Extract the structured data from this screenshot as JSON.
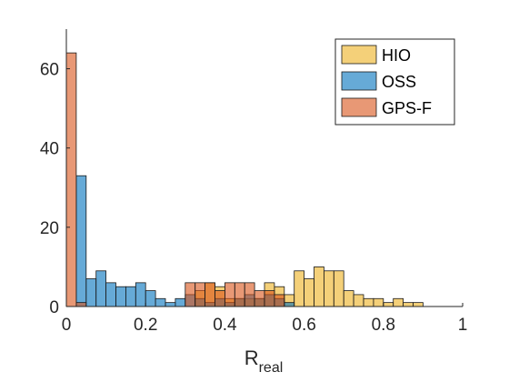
{
  "chart_data": {
    "type": "bar",
    "subtype": "overlaid-histogram",
    "title": "",
    "xlabel_base": "R",
    "xlabel_sub": "real",
    "ylabel": "",
    "xlim": [
      0,
      1
    ],
    "ylim": [
      0,
      70
    ],
    "bin_width": 0.025,
    "xticks": [
      0,
      0.2,
      0.4,
      0.6,
      0.8,
      1
    ],
    "xtick_labels": [
      "0",
      "0.2",
      "0.4",
      "0.6",
      "0.8",
      "1"
    ],
    "yticks": [
      0,
      20,
      40,
      60
    ],
    "ytick_labels": [
      "0",
      "20",
      "40",
      "60"
    ],
    "grid": false,
    "legend_position": "top-right",
    "series": [
      {
        "name": "HIO",
        "color": "#EDB120",
        "bins": [
          {
            "x0": 0.325,
            "count": 4
          },
          {
            "x0": 0.35,
            "count": 6
          },
          {
            "x0": 0.375,
            "count": 5
          },
          {
            "x0": 0.4,
            "count": 2
          },
          {
            "x0": 0.425,
            "count": 2
          },
          {
            "x0": 0.45,
            "count": 2
          },
          {
            "x0": 0.475,
            "count": 2
          },
          {
            "x0": 0.5,
            "count": 6
          },
          {
            "x0": 0.525,
            "count": 5
          },
          {
            "x0": 0.55,
            "count": 3
          },
          {
            "x0": 0.575,
            "count": 9
          },
          {
            "x0": 0.6,
            "count": 7
          },
          {
            "x0": 0.625,
            "count": 10
          },
          {
            "x0": 0.65,
            "count": 9
          },
          {
            "x0": 0.675,
            "count": 9
          },
          {
            "x0": 0.7,
            "count": 4
          },
          {
            "x0": 0.725,
            "count": 3
          },
          {
            "x0": 0.75,
            "count": 2
          },
          {
            "x0": 0.775,
            "count": 2
          },
          {
            "x0": 0.8,
            "count": 1
          },
          {
            "x0": 0.825,
            "count": 2
          },
          {
            "x0": 0.85,
            "count": 1
          },
          {
            "x0": 0.875,
            "count": 1
          }
        ]
      },
      {
        "name": "OSS",
        "color": "#0072BD",
        "bins": [
          {
            "x0": 0.0,
            "count": 0
          },
          {
            "x0": 0.025,
            "count": 33
          },
          {
            "x0": 0.05,
            "count": 7
          },
          {
            "x0": 0.075,
            "count": 9
          },
          {
            "x0": 0.1,
            "count": 6
          },
          {
            "x0": 0.125,
            "count": 5
          },
          {
            "x0": 0.15,
            "count": 5
          },
          {
            "x0": 0.175,
            "count": 6
          },
          {
            "x0": 0.2,
            "count": 4
          },
          {
            "x0": 0.225,
            "count": 2
          },
          {
            "x0": 0.25,
            "count": 1
          },
          {
            "x0": 0.275,
            "count": 2
          },
          {
            "x0": 0.3,
            "count": 3
          },
          {
            "x0": 0.325,
            "count": 2
          },
          {
            "x0": 0.35,
            "count": 1
          },
          {
            "x0": 0.375,
            "count": 2
          },
          {
            "x0": 0.4,
            "count": 1
          },
          {
            "x0": 0.425,
            "count": 2
          },
          {
            "x0": 0.45,
            "count": 3
          },
          {
            "x0": 0.475,
            "count": 2
          },
          {
            "x0": 0.5,
            "count": 3
          },
          {
            "x0": 0.525,
            "count": 2
          },
          {
            "x0": 0.55,
            "count": 1
          }
        ]
      },
      {
        "name": "GPS-F",
        "color": "#D95319",
        "bins": [
          {
            "x0": 0.0,
            "count": 64
          },
          {
            "x0": 0.025,
            "count": 1
          },
          {
            "x0": 0.3,
            "count": 6
          },
          {
            "x0": 0.325,
            "count": 6
          },
          {
            "x0": 0.35,
            "count": 6
          },
          {
            "x0": 0.375,
            "count": 4
          },
          {
            "x0": 0.4,
            "count": 6
          },
          {
            "x0": 0.425,
            "count": 6
          },
          {
            "x0": 0.45,
            "count": 6
          },
          {
            "x0": 0.475,
            "count": 4
          },
          {
            "x0": 0.5,
            "count": 4
          },
          {
            "x0": 0.525,
            "count": 3
          }
        ]
      }
    ]
  }
}
